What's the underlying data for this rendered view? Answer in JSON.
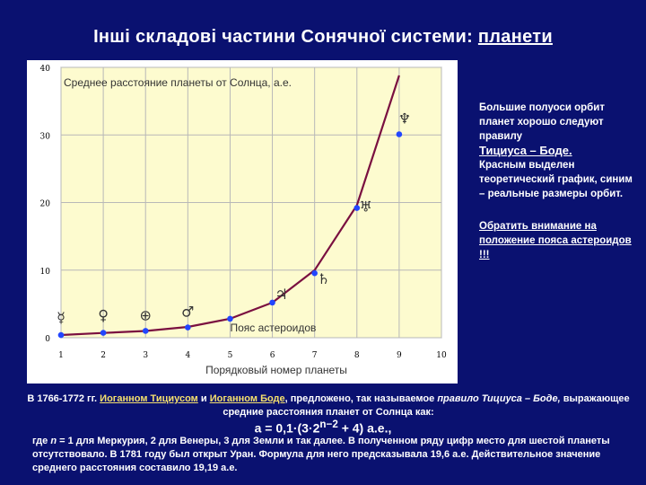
{
  "slide": {
    "title_main": "Інші складові частини Сонячної системи: ",
    "title_link": "планети"
  },
  "side": {
    "p1": "Большие полуоси орбит планет хорошо следуют правилу",
    "rule": "Тициуса – Боде.",
    "p2": "Красным выделен теоретический график, синим – реальные размеры орбит.",
    "link": "Обратить внимание на положение пояса астероидов !!!"
  },
  "bottom": {
    "line1_a": "В 1766-1772 гг. ",
    "name1": "Иоганном Тициусом",
    "line1_b": " и ",
    "name2": "Иоганном Боде",
    "line1_c": ", предложено, так называемое ",
    "rule_italic": "правило Тициуса – Боде,",
    "line1_d": " выражающее средние расстояния планет от Солнца как:",
    "formula_a": "a = 0,1·(3·2",
    "formula_exp": "n−2",
    "formula_b": " + 4) а.е.,",
    "line2_a": "где ",
    "line2_n": "n",
    "line2_b": " = 1 для Меркурия, 2 для Венеры, 3 для Земли и так далее. В полученном ряду цифр место для шестой планеты отсутствовало. В 1781 году был открыт Уран. Формула для него предсказывала 19,6 а.е. Действительное значение среднего расстояния составило 19,19 а.е."
  },
  "colors": {
    "background": "#0a1170",
    "plot_background": "#fdfbcf",
    "theory_curve": "#7a1040",
    "real_points": "#2246ff"
  },
  "chart_data": {
    "type": "scatter",
    "title": "Среднее расстояние планеты от Солнца, а.е.",
    "xlabel": "Порядковый номер планеты",
    "ylabel": "",
    "xlim": [
      1,
      10
    ],
    "ylim": [
      0,
      40
    ],
    "xticks": [
      "1",
      "2",
      "3",
      "4",
      "5",
      "6",
      "7",
      "8",
      "9",
      "10"
    ],
    "yticks": [
      "0",
      "10",
      "20",
      "30",
      "40"
    ],
    "grid": true,
    "series": [
      {
        "name": "theory",
        "kind": "line",
        "x": [
          1,
          2,
          3,
          4,
          5,
          6,
          7,
          8,
          9
        ],
        "y": [
          0.4,
          0.7,
          1.0,
          1.6,
          2.8,
          5.2,
          10.0,
          19.6,
          38.8
        ]
      },
      {
        "name": "real",
        "kind": "points",
        "x": [
          1,
          2,
          3,
          4,
          5,
          6,
          7,
          8,
          9
        ],
        "y": [
          0.39,
          0.72,
          1.0,
          1.52,
          2.8,
          5.2,
          9.54,
          19.19,
          30.1
        ]
      }
    ],
    "planet_symbols": [
      "☿",
      "♀",
      "⊕",
      "♂",
      "",
      "♃",
      "♄",
      "♅",
      "♆"
    ],
    "annotations": [
      {
        "text": "Пояс астероидов",
        "x": 5.0,
        "y": 0.4
      }
    ]
  }
}
